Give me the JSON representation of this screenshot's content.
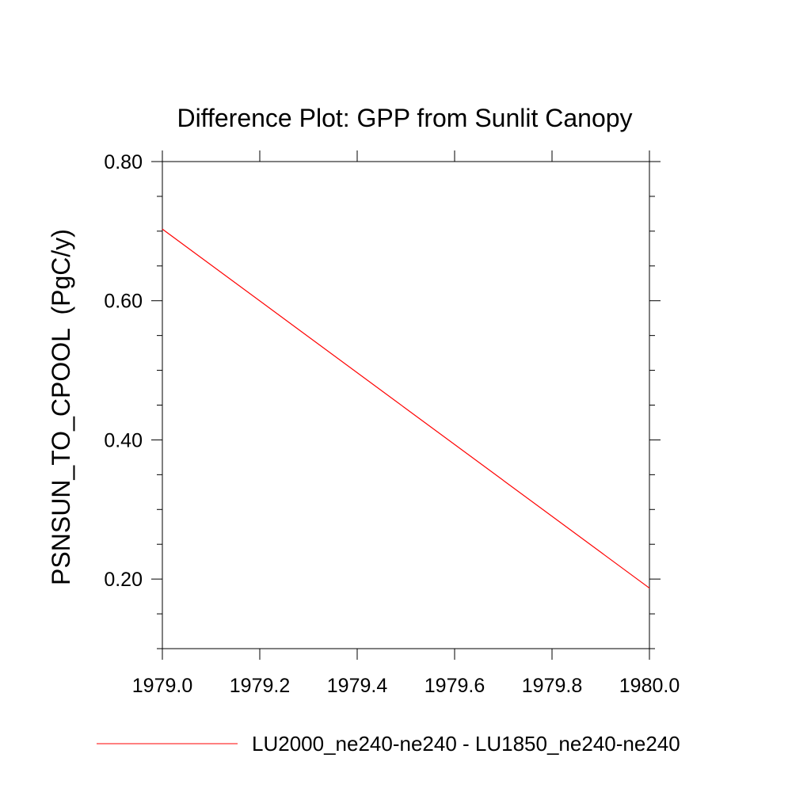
{
  "chart_data": {
    "type": "line",
    "title": "Difference Plot: GPP from Sunlit Canopy",
    "xlabel": "",
    "ylabel": "PSNSUN_TO_CPOOL  (PgC/y)",
    "xlim": [
      1979.0,
      1980.0
    ],
    "ylim": [
      0.1,
      0.8
    ],
    "xticks": [
      "1979.0",
      "1979.2",
      "1979.4",
      "1979.6",
      "1979.8",
      "1980.0"
    ],
    "yticks": [
      "0.20",
      "0.40",
      "0.60",
      "0.80"
    ],
    "grid": false,
    "legend_position": "bottom",
    "series": [
      {
        "name": "LU2000_ne240-ne240 - LU1850_ne240-ne240",
        "color": "#ff0000",
        "x": [
          1979.0,
          1980.0
        ],
        "y": [
          0.703,
          0.187
        ]
      }
    ]
  }
}
